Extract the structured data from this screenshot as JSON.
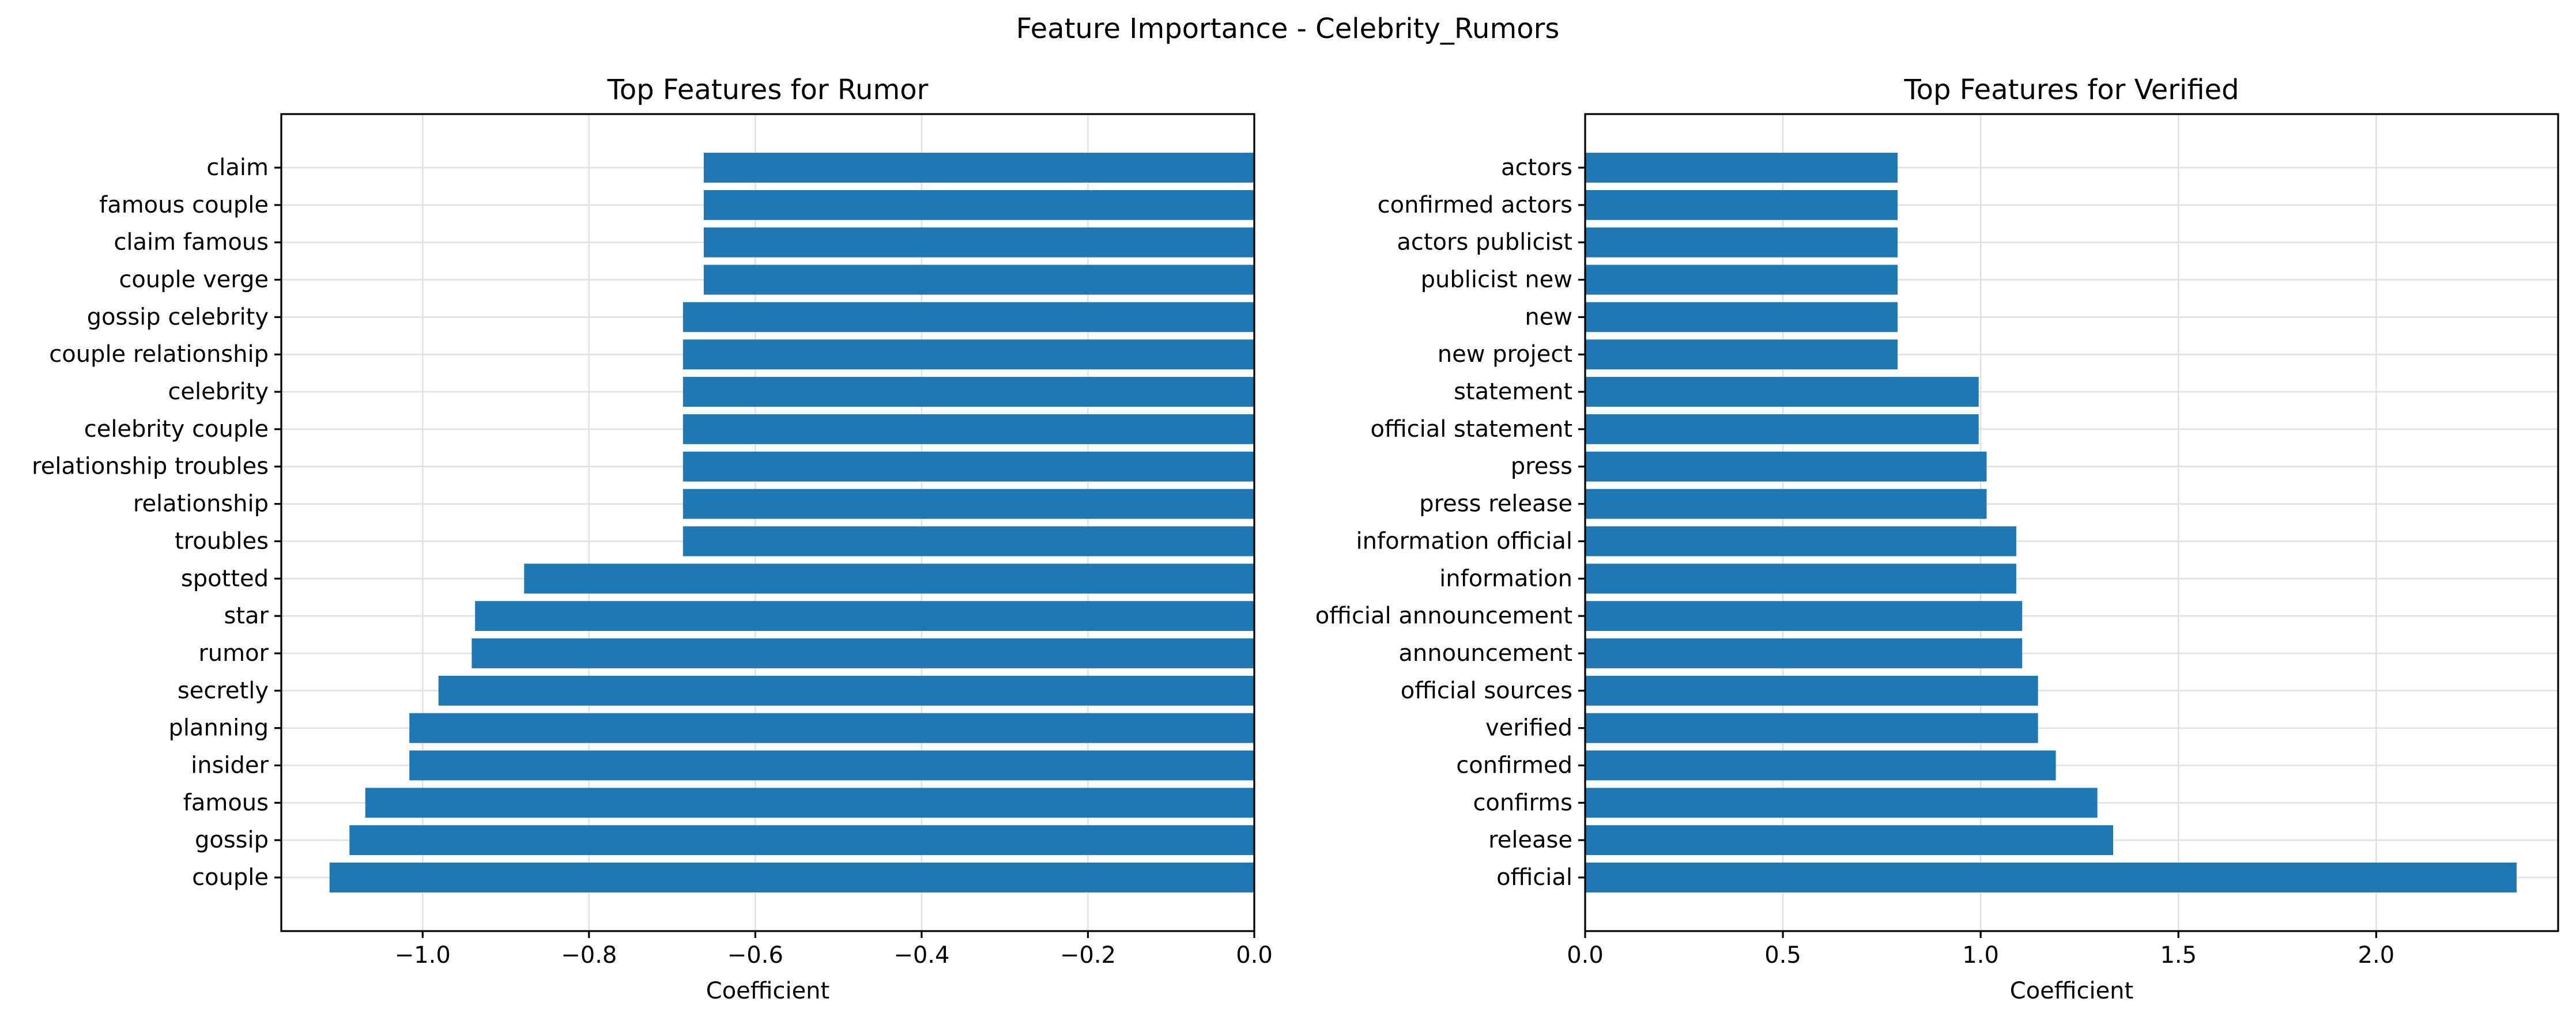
{
  "figure": {
    "title": "Feature Importance - Celebrity_Rumors"
  },
  "chart_data": [
    {
      "type": "bar",
      "orientation": "horizontal",
      "title": "Top Features for Rumor",
      "xlabel": "Coefficient",
      "ylabel": "",
      "xlim": [
        -1.17,
        0.0
      ],
      "xticks": [
        -1.0,
        -0.8,
        -0.6,
        -0.4,
        -0.2,
        0.0
      ],
      "xtick_labels": [
        "−1.0",
        "−0.8",
        "−0.6",
        "−0.4",
        "−0.2",
        "0.0"
      ],
      "grid": true,
      "color": "#1f77b4",
      "categories": [
        "claim",
        "famous couple",
        "claim famous",
        "couple verge",
        "gossip celebrity",
        "couple relationship",
        "celebrity",
        "celebrity couple",
        "relationship troubles",
        "relationship",
        "troubles",
        "spotted",
        "star",
        "rumor",
        "secretly",
        "planning",
        "insider",
        "famous",
        "gossip",
        "couple"
      ],
      "values": [
        -0.662,
        -0.662,
        -0.662,
        -0.662,
        -0.687,
        -0.687,
        -0.687,
        -0.687,
        -0.687,
        -0.687,
        -0.687,
        -0.878,
        -0.937,
        -0.941,
        -0.981,
        -1.016,
        -1.016,
        -1.069,
        -1.088,
        -1.112
      ]
    },
    {
      "type": "bar",
      "orientation": "horizontal",
      "title": "Top Features for Verified",
      "xlabel": "Coefficient",
      "ylabel": "",
      "xlim": [
        0.0,
        2.46
      ],
      "xticks": [
        0.0,
        0.5,
        1.0,
        1.5,
        2.0
      ],
      "xtick_labels": [
        "0.0",
        "0.5",
        "1.0",
        "1.5",
        "2.0"
      ],
      "grid": true,
      "color": "#1f77b4",
      "categories": [
        "actors",
        "confirmed actors",
        "actors publicist",
        "publicist new",
        "new",
        "new project",
        "statement",
        "official statement",
        "press",
        "press release",
        "information official",
        "information",
        "official announcement",
        "announcement",
        "official sources",
        "verified",
        "confirmed",
        "confirms",
        "release",
        "official"
      ],
      "values": [
        0.79,
        0.79,
        0.79,
        0.79,
        0.79,
        0.79,
        0.995,
        0.995,
        1.015,
        1.015,
        1.09,
        1.09,
        1.105,
        1.105,
        1.145,
        1.145,
        1.19,
        1.295,
        1.335,
        2.355
      ]
    }
  ]
}
